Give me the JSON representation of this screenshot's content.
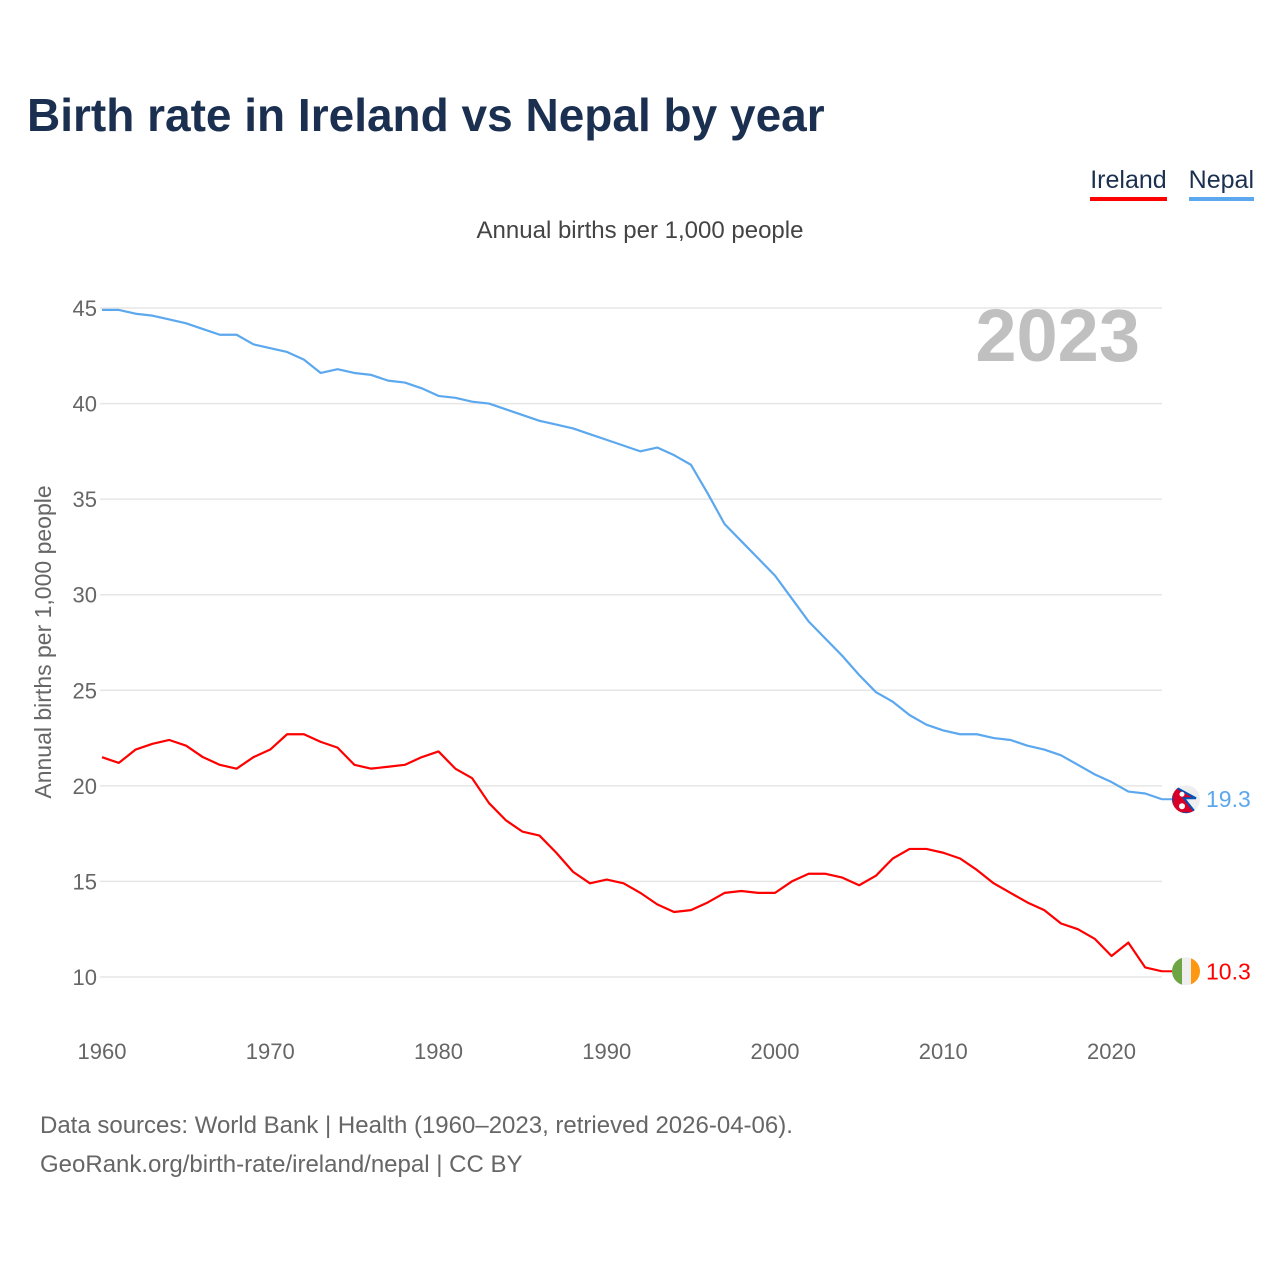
{
  "chart_data": {
    "type": "line",
    "title": "Birth rate in Ireland vs Nepal by year",
    "subtitle": "Annual births per 1,000 people",
    "ylabel": "Annual births per 1,000 people",
    "xlabel": "",
    "year_label": "2023",
    "xlim": [
      1960,
      2023
    ],
    "ylim": [
      10,
      45
    ],
    "x_ticks": [
      1960,
      1970,
      1980,
      1990,
      2000,
      2010,
      2020
    ],
    "y_ticks": [
      10,
      15,
      20,
      25,
      30,
      35,
      40,
      45
    ],
    "grid": true,
    "legend_position": "top-right",
    "x": [
      1960,
      1961,
      1962,
      1963,
      1964,
      1965,
      1966,
      1967,
      1968,
      1969,
      1970,
      1971,
      1972,
      1973,
      1974,
      1975,
      1976,
      1977,
      1978,
      1979,
      1980,
      1981,
      1982,
      1983,
      1984,
      1985,
      1986,
      1987,
      1988,
      1989,
      1990,
      1991,
      1992,
      1993,
      1994,
      1995,
      1996,
      1997,
      1998,
      1999,
      2000,
      2001,
      2002,
      2003,
      2004,
      2005,
      2006,
      2007,
      2008,
      2009,
      2010,
      2011,
      2012,
      2013,
      2014,
      2015,
      2016,
      2017,
      2018,
      2019,
      2020,
      2021,
      2022,
      2023
    ],
    "series": [
      {
        "name": "Ireland",
        "color": "#ff0000",
        "end_label": "10.3",
        "values": [
          21.5,
          21.2,
          21.9,
          22.2,
          22.4,
          22.1,
          21.5,
          21.1,
          20.9,
          21.5,
          21.9,
          22.7,
          22.7,
          22.3,
          22.0,
          21.1,
          20.9,
          21.0,
          21.1,
          21.5,
          21.8,
          20.9,
          20.4,
          19.1,
          18.2,
          17.6,
          17.4,
          16.5,
          15.5,
          14.9,
          15.1,
          14.9,
          14.4,
          13.8,
          13.4,
          13.5,
          13.9,
          14.4,
          14.5,
          14.4,
          14.4,
          15.0,
          15.4,
          15.4,
          15.2,
          14.8,
          15.3,
          16.2,
          16.7,
          16.7,
          16.5,
          16.2,
          15.6,
          14.9,
          14.4,
          13.9,
          13.5,
          12.8,
          12.5,
          12.0,
          11.1,
          11.8,
          10.5,
          10.3
        ]
      },
      {
        "name": "Nepal",
        "color": "#5ca8ee",
        "end_label": "19.3",
        "values": [
          44.9,
          44.9,
          44.7,
          44.6,
          44.4,
          44.2,
          43.9,
          43.6,
          43.6,
          43.1,
          42.9,
          42.7,
          42.3,
          41.6,
          41.8,
          41.6,
          41.5,
          41.2,
          41.1,
          40.8,
          40.4,
          40.3,
          40.1,
          40.0,
          39.7,
          39.4,
          39.1,
          38.9,
          38.7,
          38.4,
          38.1,
          37.8,
          37.5,
          37.7,
          37.3,
          36.8,
          35.3,
          33.7,
          32.8,
          31.9,
          31.0,
          29.8,
          28.6,
          27.7,
          26.8,
          25.8,
          24.9,
          24.4,
          23.7,
          23.2,
          22.9,
          22.7,
          22.7,
          22.5,
          22.4,
          22.1,
          21.9,
          21.6,
          21.1,
          20.6,
          20.2,
          19.7,
          19.6,
          19.3
        ]
      }
    ]
  },
  "source": {
    "line1": "Data sources: World Bank | Health (1960–2023, retrieved 2026-04-06).",
    "line2": "GeoRank.org/birth-rate/ireland/nepal | CC BY"
  }
}
